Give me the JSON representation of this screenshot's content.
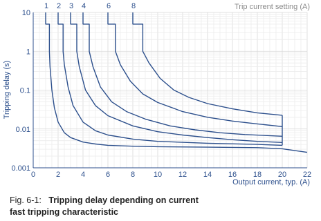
{
  "chart_data": {
    "type": "line",
    "title": "",
    "xlabel": "Output current, typ. (A)",
    "ylabel": "Tripping delay (s)",
    "legend_title": "Trip current setting (A)",
    "xlim": [
      0,
      22
    ],
    "ylim": [
      0.001,
      10
    ],
    "y_scale": "log",
    "grid": true,
    "x_ticks": [
      "0",
      "2",
      "4",
      "6",
      "8",
      "10",
      "12",
      "14",
      "16",
      "18",
      "20",
      "22"
    ],
    "y_ticks": [
      "10",
      "1",
      "0.1",
      "0.01",
      "0.001"
    ],
    "series": [
      {
        "name": "1",
        "x": [
          1.0,
          1.0,
          1.3,
          1.3,
          1.35,
          1.5,
          1.7,
          2.0,
          2.5,
          3,
          4,
          5,
          6,
          8,
          10,
          14,
          18,
          20,
          22
        ],
        "y": [
          10,
          5,
          5,
          1.0,
          0.4,
          0.1,
          0.035,
          0.015,
          0.008,
          0.006,
          0.0046,
          0.0041,
          0.0038,
          0.0036,
          0.0035,
          0.0034,
          0.0033,
          0.0031,
          0.0025
        ]
      },
      {
        "name": "2",
        "x": [
          2.0,
          2.0,
          2.4,
          2.4,
          2.5,
          2.8,
          3.2,
          4,
          5,
          6,
          8,
          10,
          14,
          18,
          20
        ],
        "y": [
          10,
          5,
          5,
          1.0,
          0.45,
          0.12,
          0.04,
          0.015,
          0.009,
          0.007,
          0.0055,
          0.0048,
          0.0043,
          0.004,
          0.0038
        ]
      },
      {
        "name": "3",
        "x": [
          3.0,
          3.0,
          3.5,
          3.5,
          3.7,
          4.2,
          5,
          6,
          8,
          10,
          12,
          14,
          16,
          18,
          20
        ],
        "y": [
          10,
          5,
          5,
          1.0,
          0.4,
          0.1,
          0.04,
          0.022,
          0.012,
          0.0085,
          0.007,
          0.006,
          0.0053,
          0.0048,
          0.0045
        ]
      },
      {
        "name": "4",
        "x": [
          4.0,
          4.0,
          4.5,
          4.5,
          4.8,
          5.4,
          6.3,
          7.5,
          9,
          11,
          13,
          15,
          17,
          20
        ],
        "y": [
          10,
          5,
          5,
          1.0,
          0.4,
          0.12,
          0.05,
          0.028,
          0.018,
          0.012,
          0.0095,
          0.008,
          0.0072,
          0.0065
        ]
      },
      {
        "name": "6",
        "x": [
          6.0,
          6.0,
          6.6,
          6.6,
          7.0,
          7.8,
          8.8,
          10,
          12,
          14,
          16,
          18,
          20
        ],
        "y": [
          10,
          5,
          5,
          1.0,
          0.45,
          0.17,
          0.08,
          0.048,
          0.028,
          0.02,
          0.016,
          0.0135,
          0.0115
        ]
      },
      {
        "name": "8",
        "x": [
          8.0,
          8.0,
          8.8,
          8.8,
          9.3,
          10.2,
          11.3,
          12.5,
          14,
          16,
          18,
          20
        ],
        "y": [
          10,
          5,
          5,
          1.0,
          0.5,
          0.2,
          0.1,
          0.065,
          0.045,
          0.033,
          0.026,
          0.0225
        ]
      }
    ],
    "annotations": [
      {
        "text": "Trip current setting (A)"
      }
    ]
  },
  "caption": {
    "label": "Fig. 6-1:",
    "title_line1": "Tripping delay depending on current",
    "title_line2": "fast tripping characteristic"
  },
  "colors": {
    "curve": "#2c4f8c",
    "grid": "#d8d8d8",
    "grid_minor": "#ececec",
    "axis": "#2c4f8c",
    "text": "#2c4f8c",
    "setting_text": "#8a8a8a"
  }
}
